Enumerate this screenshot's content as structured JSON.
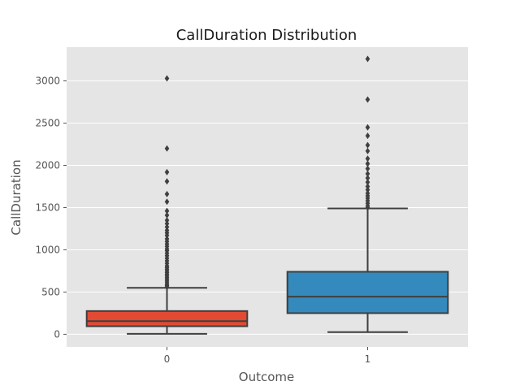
{
  "chart_data": {
    "type": "box",
    "title": "CallDuration Distribution",
    "xlabel": "Outcome",
    "ylabel": "CallDuration",
    "ylim": [
      -150,
      3400
    ],
    "yticks": [
      0,
      500,
      1000,
      1500,
      2000,
      2500,
      3000
    ],
    "grid": true,
    "background": "#e5e5e5",
    "categories": [
      "0",
      "1"
    ],
    "boxes": [
      {
        "category": "0",
        "color": "#e24a33",
        "whisker_low": 5,
        "q1": 95,
        "median": 155,
        "q3": 275,
        "whisker_high": 550,
        "outliers": [
          560,
          575,
          590,
          610,
          630,
          650,
          670,
          690,
          710,
          730,
          750,
          770,
          790,
          810,
          840,
          870,
          900,
          930,
          960,
          990,
          1010,
          1040,
          1070,
          1100,
          1130,
          1170,
          1200,
          1230,
          1270,
          1310,
          1350,
          1410,
          1460,
          1570,
          1660,
          1810,
          1920,
          2200,
          3030
        ]
      },
      {
        "category": "1",
        "color": "#348abd",
        "whisker_low": 25,
        "q1": 250,
        "median": 445,
        "q3": 740,
        "whisker_high": 1490,
        "outliers": [
          1500,
          1520,
          1550,
          1580,
          1610,
          1640,
          1670,
          1710,
          1750,
          1800,
          1850,
          1900,
          1960,
          2020,
          2080,
          2170,
          2240,
          2350,
          2450,
          2780,
          3260
        ]
      }
    ]
  }
}
